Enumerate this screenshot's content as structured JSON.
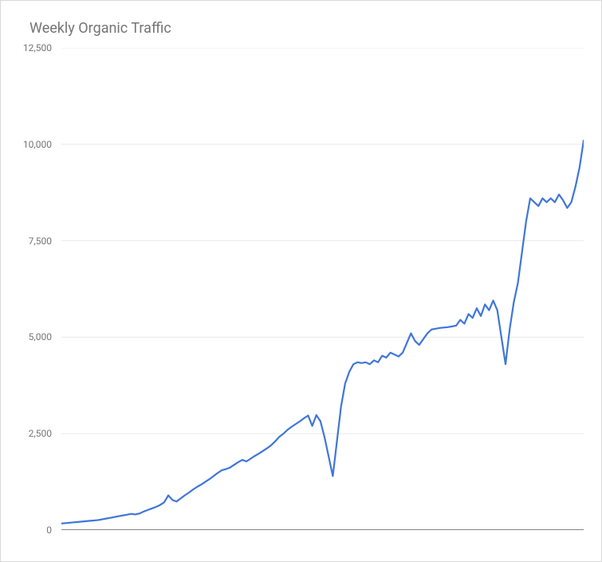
{
  "chart": {
    "type": "line",
    "title": "Weekly Organic Traffic",
    "title_fontsize": 18,
    "title_color": "#757575",
    "background_color": "#ffffff",
    "border_color": "#d8d8d8",
    "line_color": "#3f76d8",
    "line_width": 2.2,
    "grid_color": "#e9e9e9",
    "axis_color": "#3b3b3b",
    "ylabel_color": "#757575",
    "ylabel_fontsize": 12,
    "ymin": 0,
    "ymax": 12500,
    "yticks": [
      0,
      2500,
      5000,
      7500,
      10000,
      12500
    ],
    "ytick_labels": [
      "0",
      "2,500",
      "5,000",
      "7,500",
      "10,000",
      "12,500"
    ],
    "values": [
      170,
      180,
      190,
      200,
      210,
      220,
      230,
      240,
      250,
      260,
      280,
      300,
      320,
      340,
      360,
      380,
      400,
      420,
      405,
      430,
      480,
      520,
      560,
      600,
      650,
      720,
      900,
      780,
      740,
      820,
      900,
      970,
      1050,
      1120,
      1180,
      1250,
      1320,
      1400,
      1480,
      1550,
      1580,
      1620,
      1690,
      1760,
      1820,
      1780,
      1850,
      1920,
      1980,
      2050,
      2120,
      2200,
      2300,
      2420,
      2500,
      2600,
      2680,
      2750,
      2820,
      2900,
      2970,
      2700,
      2980,
      2820,
      2400,
      1900,
      1400,
      2300,
      3200,
      3800,
      4100,
      4300,
      4350,
      4330,
      4350,
      4300,
      4400,
      4350,
      4520,
      4470,
      4600,
      4550,
      4500,
      4600,
      4850,
      5100,
      4900,
      4800,
      4950,
      5100,
      5200,
      5220,
      5240,
      5250,
      5260,
      5280,
      5300,
      5450,
      5350,
      5600,
      5500,
      5750,
      5550,
      5850,
      5700,
      5950,
      5700,
      5000,
      4300,
      5200,
      5900,
      6400,
      7200,
      8000,
      8600,
      8500,
      8400,
      8600,
      8500,
      8600,
      8500,
      8700,
      8550,
      8350,
      8500,
      8900,
      9400,
      10100
    ]
  }
}
